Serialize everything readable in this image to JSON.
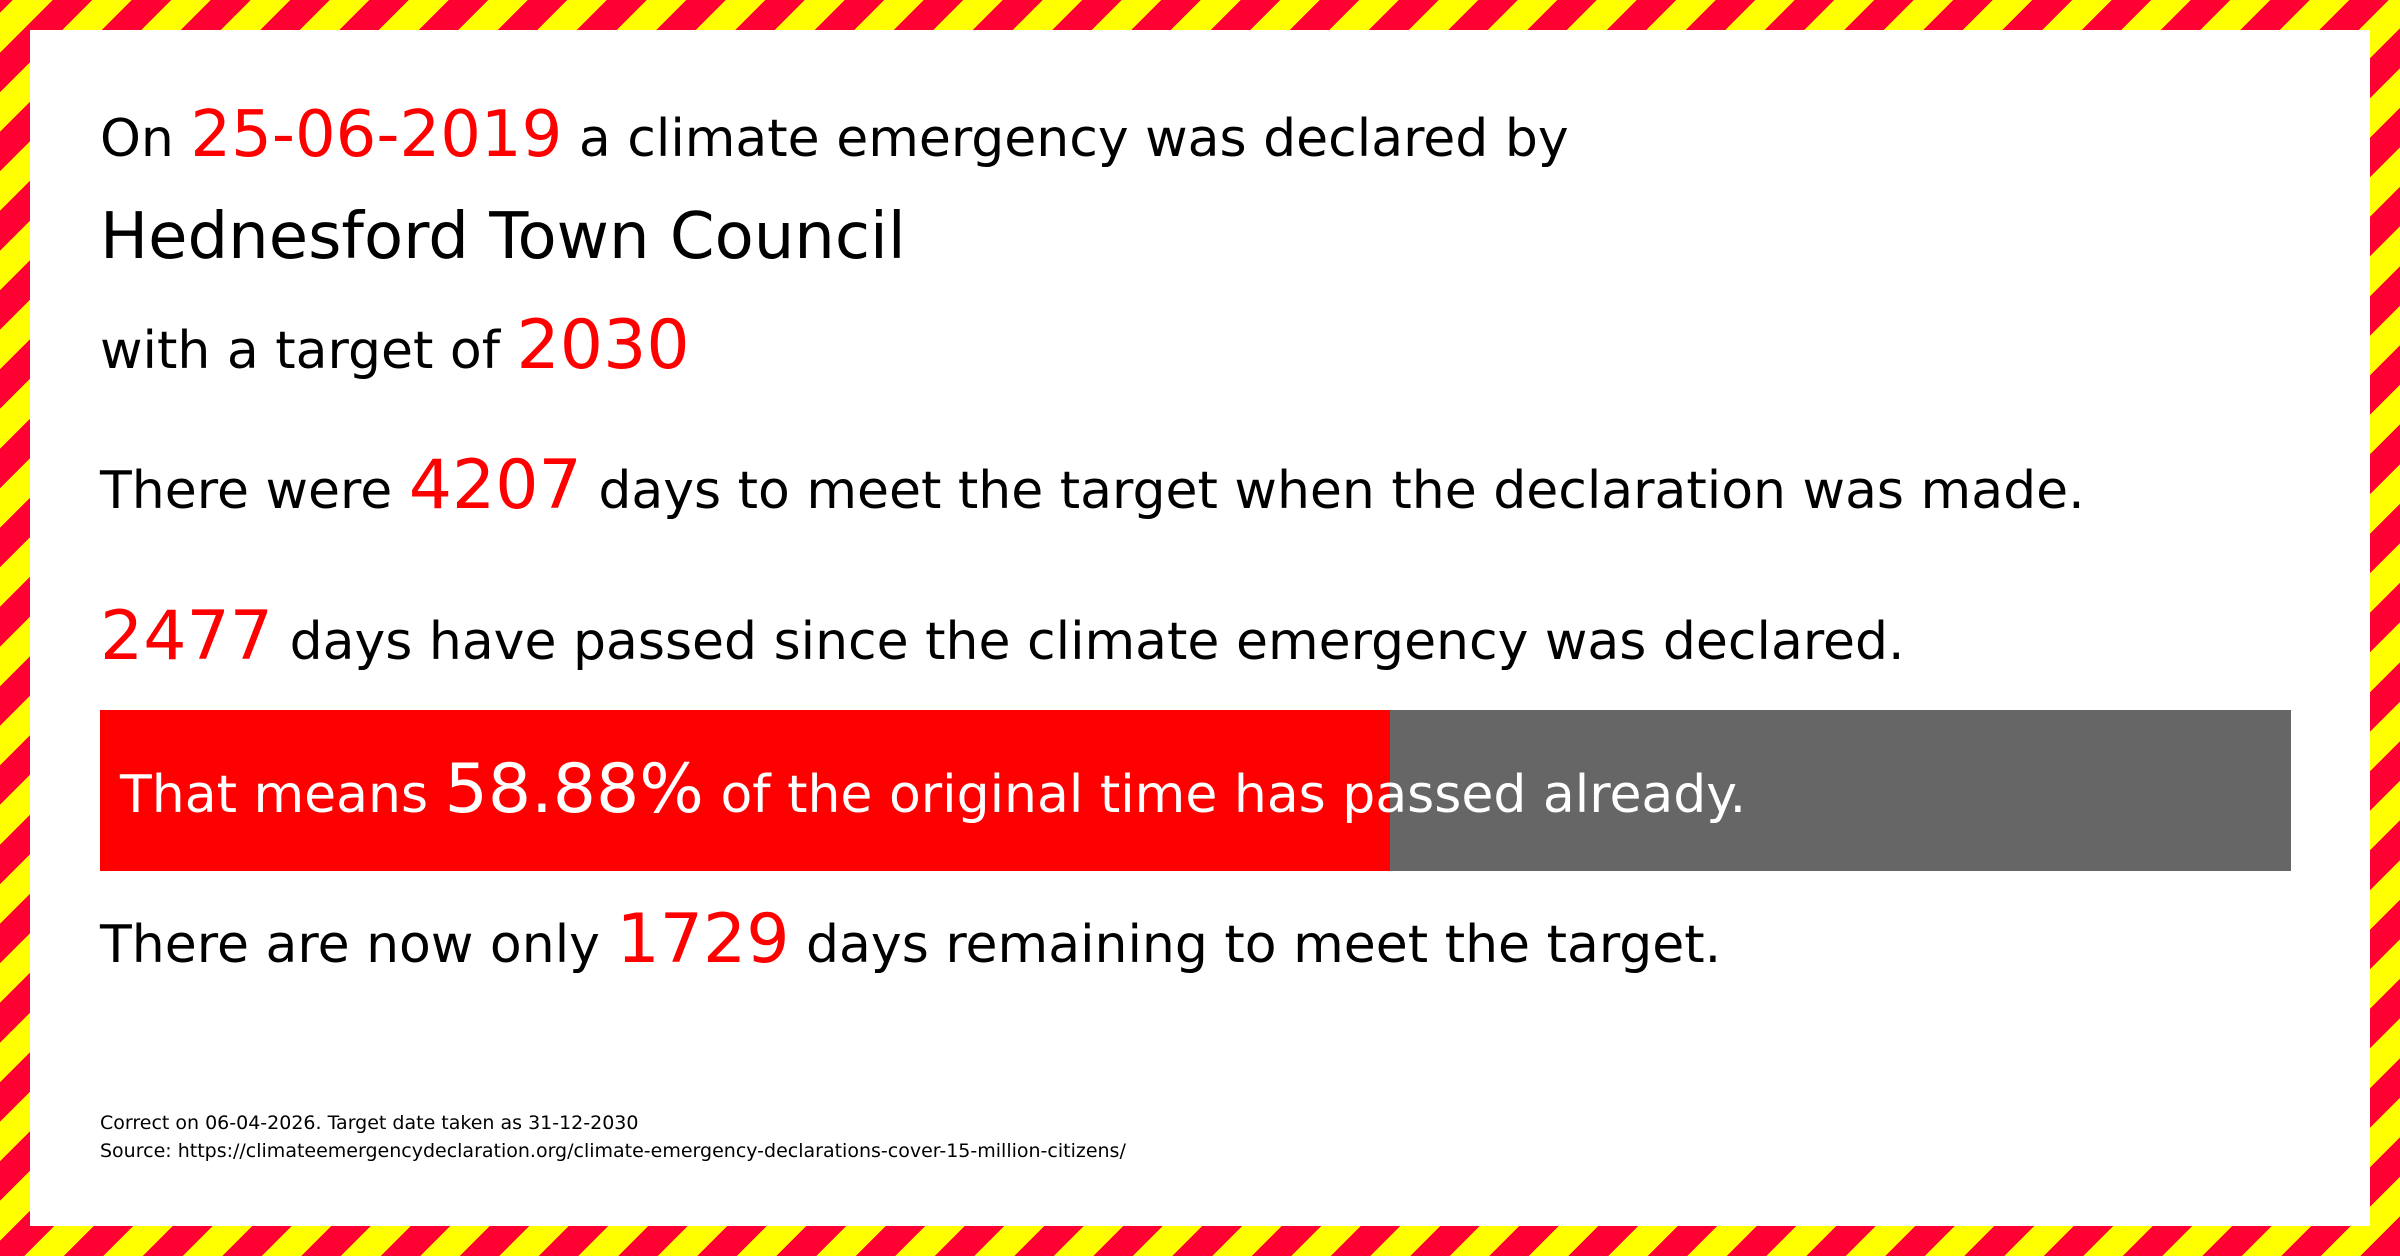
{
  "colors": {
    "stripe_red": "#ff0033",
    "stripe_yellow": "#ffff00",
    "highlight": "#ff0000",
    "bar_remaining": "#666666"
  },
  "line1": {
    "prefix": "On",
    "date": "25-06-2019",
    "suffix": "a climate emergency was declared by"
  },
  "council": "Hednesford Town Council",
  "line3": {
    "prefix": "with a target of",
    "target": "2030"
  },
  "line4": {
    "prefix": "There were",
    "days": "4207",
    "suffix": "days to meet the target when the declaration was made."
  },
  "line5": {
    "days": "2477",
    "suffix": "days have passed since the climate emergency was declared."
  },
  "progress": {
    "percent": 58.88,
    "prefix": "That means",
    "value": "58.88%",
    "suffix": "of the original time has passed already."
  },
  "line7": {
    "prefix": "There are now only",
    "days": "1729",
    "suffix": "days remaining to meet the target."
  },
  "footer": {
    "correct": "Correct on 06-04-2026. Target date taken as 31-12-2030",
    "source": "Source: https://climateemergencydeclaration.org/climate-emergency-declarations-cover-15-million-citizens/"
  }
}
